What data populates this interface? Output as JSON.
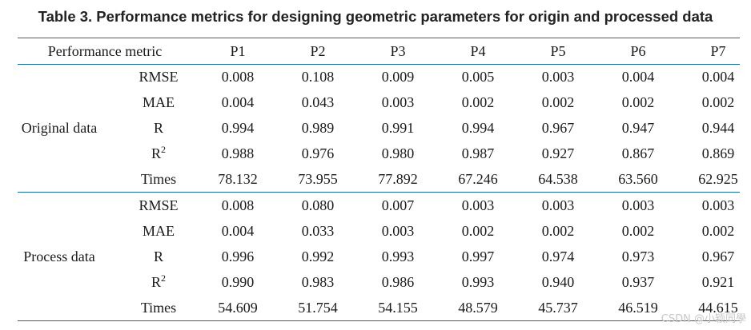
{
  "caption": "Table  3.  Performance metrics for designing geometric parameters for origin and processed data",
  "header": {
    "metric_label": "Performance metric",
    "columns": [
      "P1",
      "P2",
      "P3",
      "P4",
      "P5",
      "P6",
      "P7"
    ]
  },
  "groups": [
    {
      "label": "Original data",
      "rows": [
        {
          "metric": "RMSE",
          "sup": "",
          "values": [
            "0.008",
            "0.108",
            "0.009",
            "0.005",
            "0.003",
            "0.004",
            "0.004"
          ]
        },
        {
          "metric": "MAE",
          "sup": "",
          "values": [
            "0.004",
            "0.043",
            "0.003",
            "0.002",
            "0.002",
            "0.002",
            "0.002"
          ]
        },
        {
          "metric": "R",
          "sup": "",
          "values": [
            "0.994",
            "0.989",
            "0.991",
            "0.994",
            "0.967",
            "0.947",
            "0.944"
          ]
        },
        {
          "metric": "R",
          "sup": "2",
          "values": [
            "0.988",
            "0.976",
            "0.980",
            "0.987",
            "0.927",
            "0.867",
            "0.869"
          ]
        },
        {
          "metric": "Times",
          "sup": "",
          "values": [
            "78.132",
            "73.955",
            "77.892",
            "67.246",
            "64.538",
            "63.560",
            "62.925"
          ]
        }
      ]
    },
    {
      "label": "Process data",
      "rows": [
        {
          "metric": "RMSE",
          "sup": "",
          "values": [
            "0.008",
            "0.080",
            "0.007",
            "0.003",
            "0.003",
            "0.003",
            "0.003"
          ]
        },
        {
          "metric": "MAE",
          "sup": "",
          "values": [
            "0.004",
            "0.033",
            "0.003",
            "0.002",
            "0.002",
            "0.002",
            "0.002"
          ]
        },
        {
          "metric": "R",
          "sup": "",
          "values": [
            "0.996",
            "0.992",
            "0.993",
            "0.997",
            "0.974",
            "0.973",
            "0.967"
          ]
        },
        {
          "metric": "R",
          "sup": "2",
          "values": [
            "0.990",
            "0.983",
            "0.986",
            "0.993",
            "0.940",
            "0.937",
            "0.921"
          ]
        },
        {
          "metric": "Times",
          "sup": "",
          "values": [
            "54.609",
            "51.754",
            "54.155",
            "48.579",
            "45.737",
            "46.519",
            "44.615"
          ]
        }
      ]
    }
  ],
  "watermark": "CSDN @小颖同學"
}
